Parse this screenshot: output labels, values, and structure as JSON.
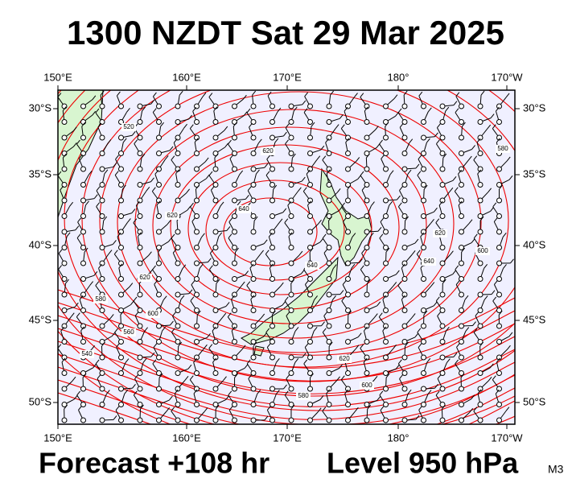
{
  "header": {
    "title": "1300 NZDT Sat 29 Mar 2025"
  },
  "map": {
    "lon_labels": [
      "150°E",
      "160°E",
      "170°E",
      "180°",
      "170°W"
    ],
    "lat_labels": [
      "30°S",
      "35°S",
      "40°S",
      "45°S",
      "50°S"
    ],
    "contour_labels": [
      "520",
      "620",
      "640",
      "620",
      "620",
      "640",
      "620",
      "640",
      "600",
      "580",
      "580",
      "600",
      "560",
      "540",
      "620",
      "600",
      "580"
    ]
  },
  "footer": {
    "forecast": "Forecast +108 hr",
    "level": "Level 950 hPa",
    "model": "M3"
  }
}
